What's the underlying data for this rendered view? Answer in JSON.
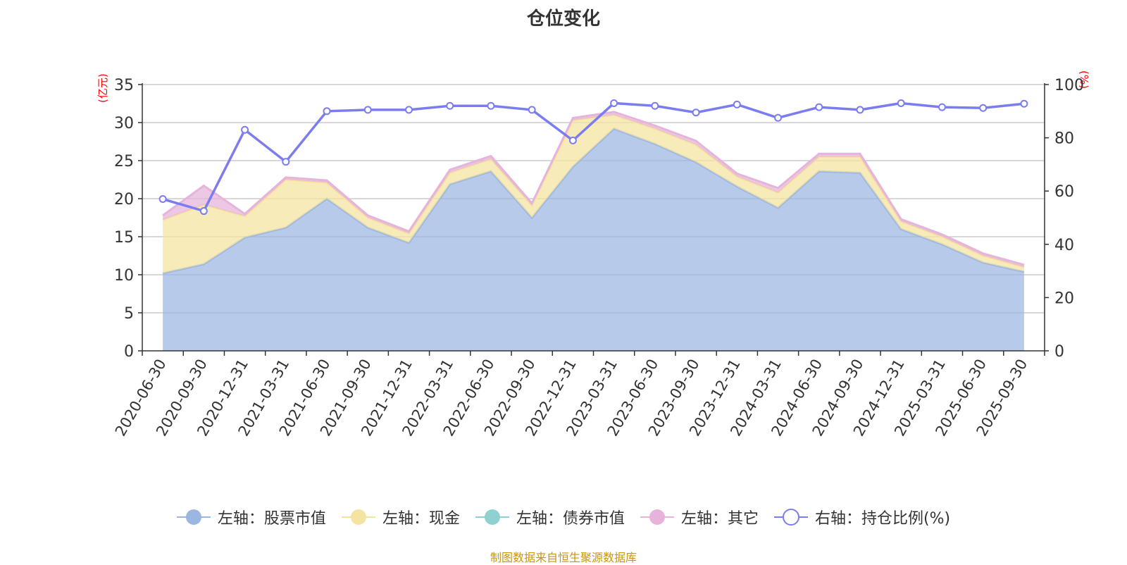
{
  "chart_data": {
    "type": "area",
    "title": "仓位变化",
    "left_unit": "(亿元)",
    "right_unit": "(%)",
    "categories": [
      "2020-06-30",
      "2020-09-30",
      "2020-12-31",
      "2021-03-31",
      "2021-06-30",
      "2021-09-30",
      "2021-12-31",
      "2022-03-31",
      "2022-06-30",
      "2022-09-30",
      "2022-12-31",
      "2023-03-31",
      "2023-06-30",
      "2023-09-30",
      "2023-12-31",
      "2024-03-31",
      "2024-06-30",
      "2024-09-30",
      "2024-12-31",
      "2025-03-31",
      "2025-06-30",
      "2025-09-30"
    ],
    "left_axis": {
      "min": 0,
      "max": 35,
      "ticks": [
        0,
        5,
        10,
        15,
        20,
        25,
        30,
        35
      ]
    },
    "right_axis": {
      "min": 0,
      "max": 100,
      "ticks": [
        0,
        20,
        40,
        60,
        80,
        100
      ]
    },
    "grid": true,
    "legend_position": "bottom",
    "series": [
      {
        "name": "左轴：股票市值",
        "axis": "left",
        "stacked": true,
        "color": "#9bb6e0",
        "values": [
          10.2,
          11.4,
          14.9,
          16.2,
          20.0,
          16.2,
          14.2,
          21.9,
          23.6,
          17.5,
          24.2,
          29.2,
          27.2,
          24.8,
          21.6,
          18.8,
          23.6,
          23.4,
          16.0,
          14.0,
          11.6,
          10.4
        ]
      },
      {
        "name": "左轴：现金",
        "axis": "left",
        "stacked": true,
        "color": "#f5e3a0",
        "values": [
          7.0,
          7.8,
          2.8,
          6.3,
          2.1,
          1.3,
          1.2,
          1.5,
          1.6,
          1.6,
          6.1,
          1.8,
          2.0,
          2.3,
          1.3,
          2.0,
          1.9,
          2.1,
          1.0,
          1.0,
          0.9,
          0.6
        ]
      },
      {
        "name": "左轴：债券市值",
        "axis": "left",
        "stacked": true,
        "color": "#8fd0d0",
        "values": [
          0,
          0,
          0,
          0,
          0,
          0,
          0,
          0,
          0,
          0,
          0,
          0,
          0,
          0,
          0,
          0,
          0,
          0,
          0,
          0,
          0,
          0
        ]
      },
      {
        "name": "左轴：其它",
        "axis": "left",
        "stacked": true,
        "color": "#e6b3da",
        "values": [
          0.6,
          2.5,
          0.3,
          0.3,
          0.3,
          0.3,
          0.3,
          0.4,
          0.4,
          0.3,
          0.3,
          0.4,
          0.4,
          0.5,
          0.4,
          0.6,
          0.4,
          0.4,
          0.3,
          0.3,
          0.3,
          0.3
        ]
      },
      {
        "name": "右轴：持仓比例(%)",
        "axis": "right",
        "stacked": false,
        "color": "#7b7cf0",
        "values": [
          57,
          52.5,
          83,
          71,
          90,
          90.5,
          90.5,
          92,
          92,
          90.5,
          79,
          93,
          92,
          89.5,
          92.5,
          87.5,
          91.5,
          90.5,
          93,
          91.5,
          91.2,
          92.8
        ]
      }
    ],
    "source": "制图数据来自恒生聚源数据库"
  }
}
